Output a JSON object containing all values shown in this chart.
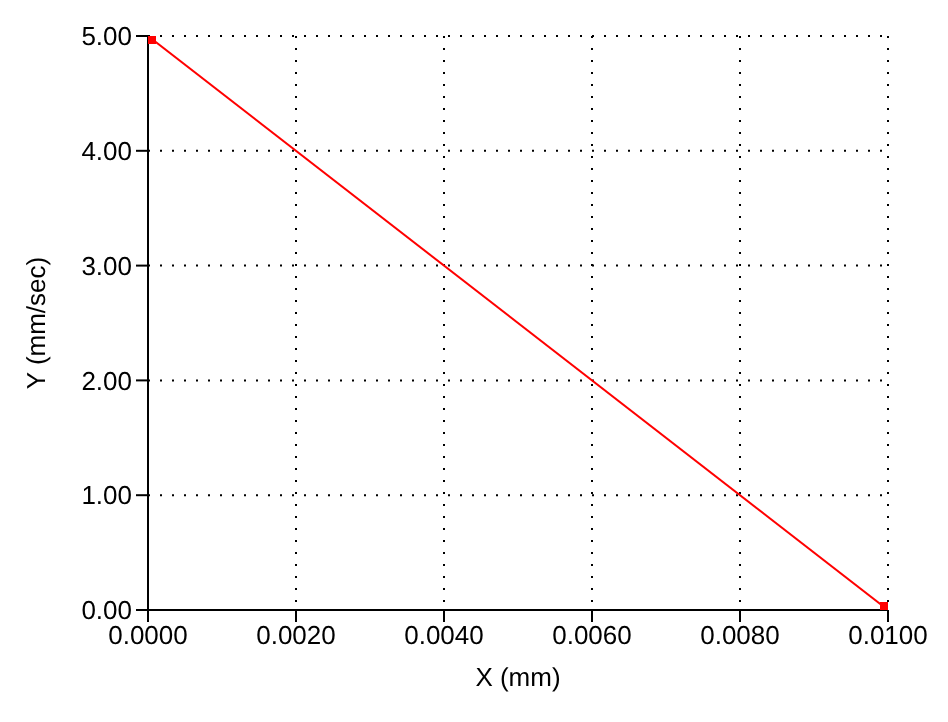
{
  "chart_data": {
    "type": "line",
    "xlabel": "X (mm)",
    "ylabel": "Y (mm/sec)",
    "x": [
      0,
      0.01
    ],
    "series": [
      {
        "color": "#ff0000",
        "values": [
          5,
          0
        ]
      }
    ],
    "xlim": [
      0,
      0.01
    ],
    "xticks": [
      {
        "value": 0,
        "label": "0.0000"
      },
      {
        "value": 0.002,
        "label": "0.0020"
      },
      {
        "value": 0.004,
        "label": "0.0040"
      },
      {
        "value": 0.006,
        "label": "0.0060"
      },
      {
        "value": 0.008,
        "label": "0.0080"
      },
      {
        "value": 0.01,
        "label": "0.0100"
      }
    ],
    "ylim": [
      0,
      5
    ],
    "yticks": [
      {
        "value": 0,
        "label": "0.00"
      },
      {
        "value": 1,
        "label": "1.00"
      },
      {
        "value": 2,
        "label": "2.00"
      },
      {
        "value": 3,
        "label": "3.00"
      },
      {
        "value": 4,
        "label": "4.00"
      },
      {
        "value": 5,
        "label": "5.00"
      }
    ],
    "grid": true,
    "marker": "square",
    "line_style": "solid"
  }
}
